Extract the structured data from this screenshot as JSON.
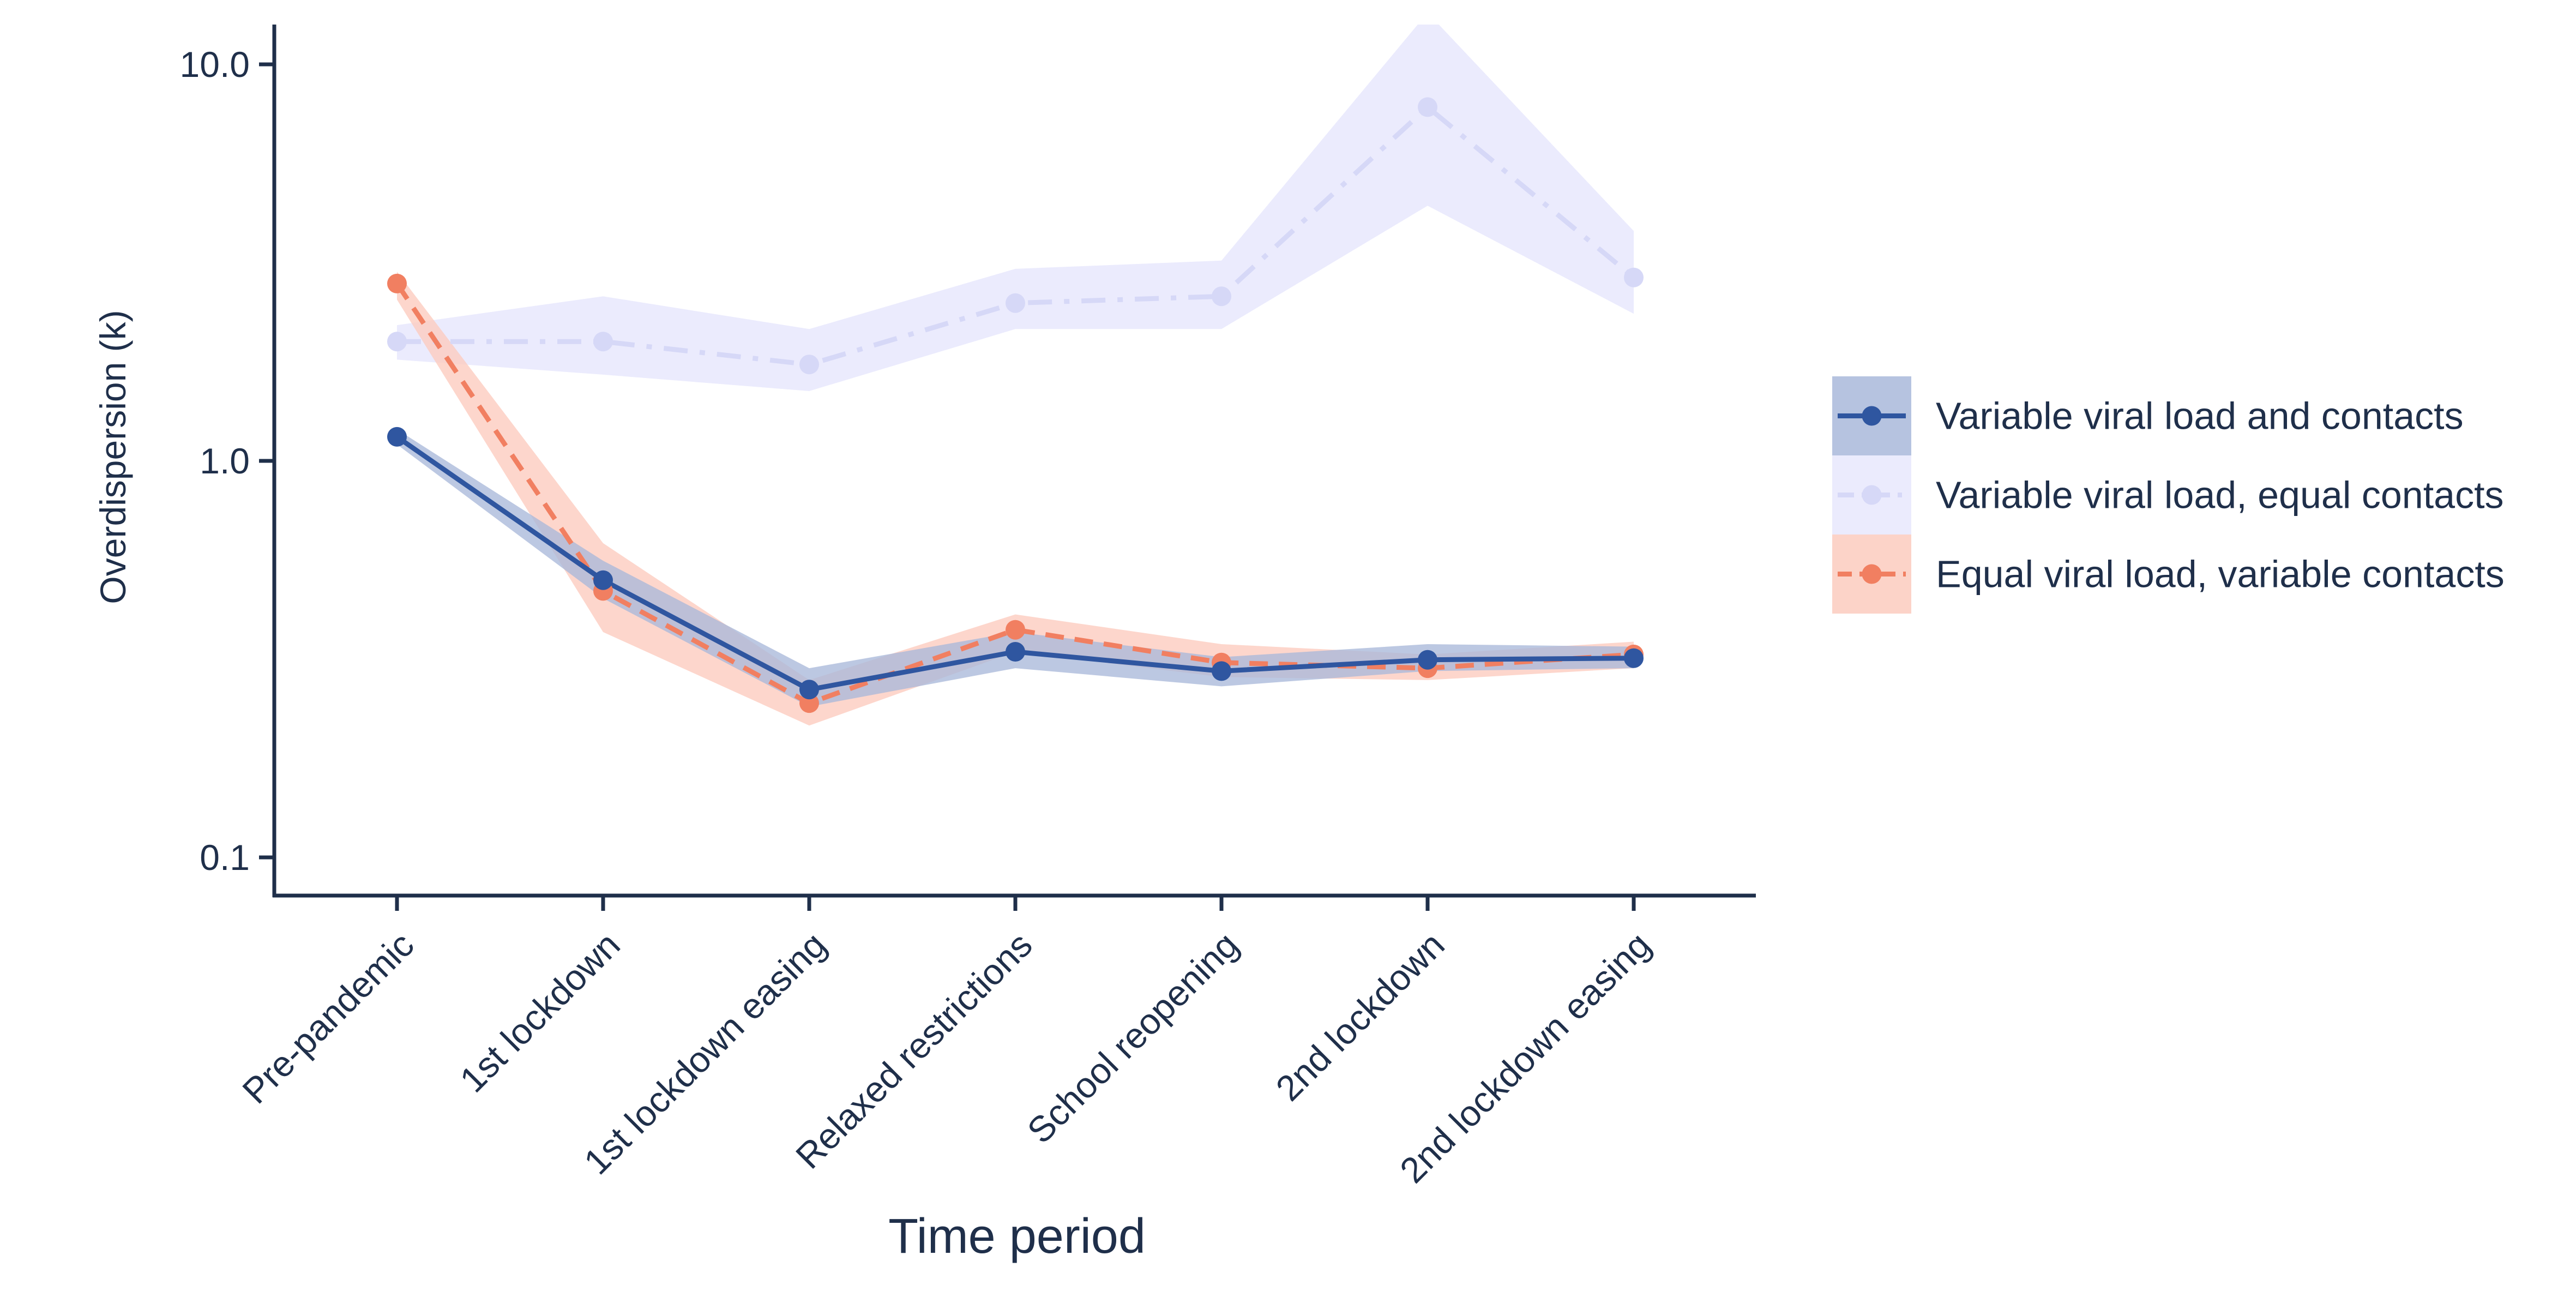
{
  "chart_data": {
    "type": "line",
    "xlabel": "Time period",
    "ylabel": "Overdispersion (k)",
    "y_scale": "log",
    "ylim": [
      0.08,
      12.5
    ],
    "y_ticks": [
      0.1,
      1.0,
      10.0
    ],
    "y_tick_labels": [
      "0.1",
      "1.0",
      "10.0"
    ],
    "categories": [
      "Pre-pandemic",
      "1st lockdown",
      "1st lockdown easing",
      "Relaxed restrictions",
      "School reopening",
      "2nd lockdown",
      "2nd lockdown easing"
    ],
    "grid": false,
    "legend_position": "right",
    "series": [
      {
        "name": "Variable viral load and contacts",
        "color": "#2f56a0",
        "band_color": "#a9b9da",
        "line_style": "solid",
        "values": [
          1.15,
          0.5,
          0.265,
          0.33,
          0.295,
          0.315,
          0.318
        ],
        "lower": [
          1.1,
          0.45,
          0.24,
          0.3,
          0.27,
          0.295,
          0.3
        ],
        "upper": [
          1.2,
          0.56,
          0.3,
          0.37,
          0.32,
          0.345,
          0.34
        ]
      },
      {
        "name": "Variable viral load, equal contacts",
        "color": "#d6d8f7",
        "band_color": "#ebebfd",
        "line_style": "dashdot",
        "values": [
          2.0,
          2.0,
          1.75,
          2.5,
          2.6,
          7.8,
          2.9
        ],
        "lower": [
          1.8,
          1.65,
          1.5,
          2.15,
          2.15,
          4.4,
          2.35
        ],
        "upper": [
          2.2,
          2.6,
          2.15,
          3.05,
          3.2,
          13.5,
          3.8
        ]
      },
      {
        "name": "Equal viral load, variable contacts",
        "color": "#f17f61",
        "band_color": "#fccbbe",
        "line_style": "dashed",
        "values": [
          2.8,
          0.47,
          0.245,
          0.375,
          0.31,
          0.3,
          0.325
        ],
        "lower": [
          2.55,
          0.37,
          0.215,
          0.33,
          0.285,
          0.28,
          0.3
        ],
        "upper": [
          3.0,
          0.62,
          0.28,
          0.41,
          0.345,
          0.325,
          0.35
        ]
      }
    ]
  }
}
